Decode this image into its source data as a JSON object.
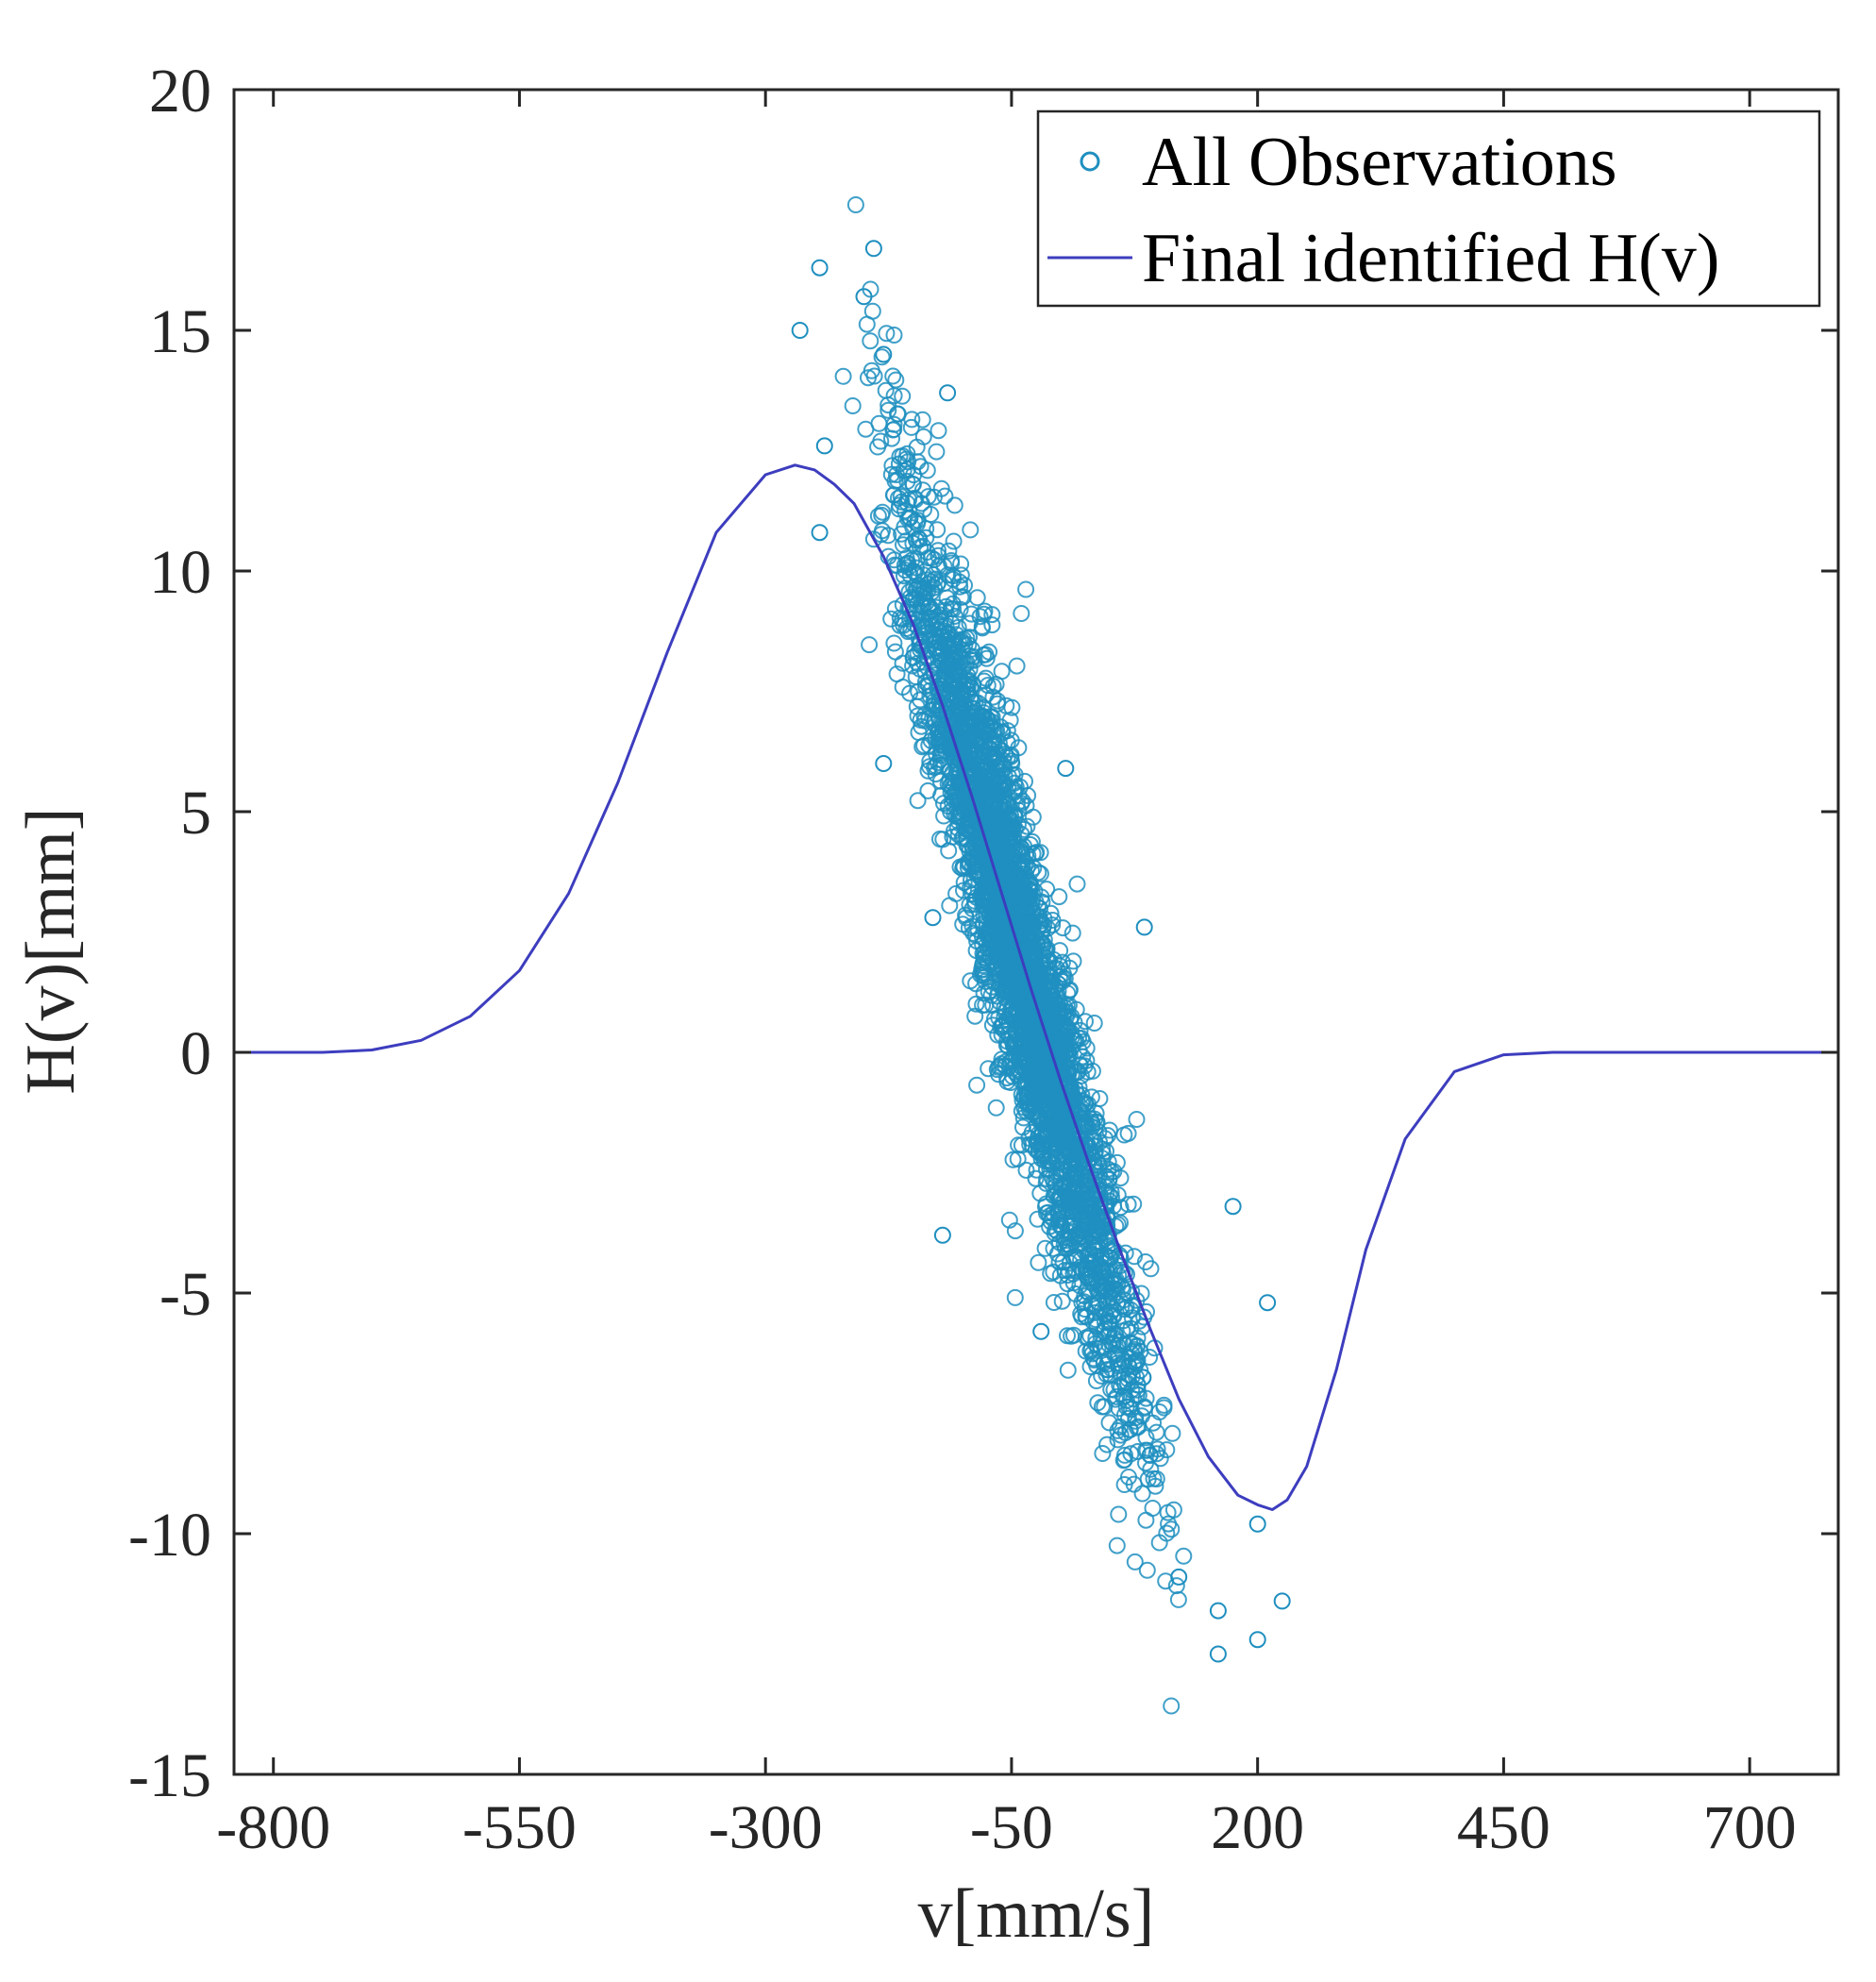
{
  "chart_data": {
    "type": "scatter",
    "title": "",
    "xlabel": "v[mm/s]",
    "ylabel": "H(v)[mm]",
    "xlim": [
      -840,
      790
    ],
    "ylim": [
      -15,
      20
    ],
    "xticks": [
      -800,
      -550,
      -300,
      -50,
      200,
      450,
      700
    ],
    "xtick_labels": [
      "-800",
      "-550",
      "-300",
      "-50",
      "200",
      "450",
      "700"
    ],
    "yticks": [
      20,
      15,
      10,
      5,
      0,
      -5,
      -10,
      -15
    ],
    "ytick_labels": [
      "20",
      "15",
      "10",
      "5",
      "0",
      "-5",
      "-10",
      "-15"
    ],
    "grid": false,
    "legend": {
      "location": "top-right",
      "entries": [
        "All Observations",
        "Final identified H(v)"
      ]
    },
    "series": [
      {
        "name": "All Observations",
        "type": "scatter",
        "marker": "open-circle",
        "color": "#1f8fbf",
        "note": "dense cloud of several thousand points along a negative-slope band",
        "sample_points": [
          {
            "x": -245,
            "y": 16.3
          },
          {
            "x": -190,
            "y": 16.7
          },
          {
            "x": -265,
            "y": 15.0
          },
          {
            "x": -200,
            "y": 15.7
          },
          {
            "x": -180,
            "y": 14.5
          },
          {
            "x": -240,
            "y": 12.6
          },
          {
            "x": -115,
            "y": 13.7
          },
          {
            "x": -245,
            "y": 10.8
          },
          {
            "x": -180,
            "y": 6.0
          },
          {
            "x": -130,
            "y": 2.8
          },
          {
            "x": 5,
            "y": 5.9
          },
          {
            "x": 85,
            "y": 2.6
          },
          {
            "x": -120,
            "y": -3.8
          },
          {
            "x": -20,
            "y": -5.8
          },
          {
            "x": 175,
            "y": -3.2
          },
          {
            "x": 210,
            "y": -5.2
          },
          {
            "x": 200,
            "y": -9.8
          },
          {
            "x": 120,
            "y": -10.9
          },
          {
            "x": 160,
            "y": -11.6
          },
          {
            "x": 200,
            "y": -12.2
          },
          {
            "x": 160,
            "y": -12.5
          },
          {
            "x": 225,
            "y": -11.4
          }
        ]
      },
      {
        "name": "Final identified H(v)",
        "type": "line",
        "color": "#3d3dbf",
        "x": [
          -840,
          -800,
          -750,
          -700,
          -650,
          -600,
          -550,
          -500,
          -450,
          -400,
          -350,
          -300,
          -270,
          -250,
          -230,
          -210,
          -180,
          -150,
          -120,
          -90,
          -60,
          -30,
          0,
          30,
          60,
          90,
          120,
          150,
          180,
          200,
          215,
          230,
          250,
          280,
          310,
          350,
          400,
          450,
          500,
          550,
          600,
          650,
          700,
          790
        ],
        "y": [
          0.0,
          0.0,
          0.0,
          0.05,
          0.25,
          0.75,
          1.7,
          3.3,
          5.6,
          8.3,
          10.8,
          12.0,
          12.2,
          12.1,
          11.8,
          11.4,
          10.3,
          8.9,
          7.2,
          5.3,
          3.3,
          1.3,
          -0.6,
          -2.4,
          -4.1,
          -5.7,
          -7.2,
          -8.4,
          -9.2,
          -9.4,
          -9.5,
          -9.3,
          -8.6,
          -6.6,
          -4.1,
          -1.8,
          -0.4,
          -0.05,
          0.0,
          0.0,
          0.0,
          0.0,
          0.0,
          0.0
        ]
      }
    ]
  }
}
